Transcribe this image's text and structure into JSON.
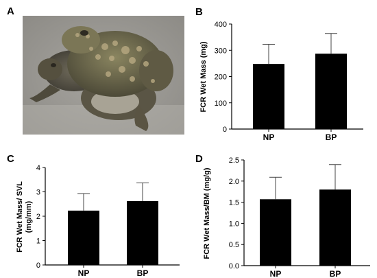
{
  "photo": {
    "letter": "A",
    "subject": "toad-pair-in-amplexus"
  },
  "chart_data": [
    {
      "panel": "B",
      "type": "bar",
      "categories": [
        "NP",
        "BP"
      ],
      "values": [
        248,
        287
      ],
      "errors": [
        75,
        77
      ],
      "ylabel": "FCR  Wet Mass (mg)",
      "ylim": [
        0,
        400
      ],
      "yticks": [
        "0",
        "100",
        "200",
        "300",
        "400"
      ],
      "bar_color": "#000000",
      "grid": false,
      "legend": "none"
    },
    {
      "panel": "C",
      "type": "bar",
      "categories": [
        "NP",
        "BP"
      ],
      "values": [
        2.23,
        2.62
      ],
      "errors": [
        0.7,
        0.75
      ],
      "ylabel": "FCR Wet Mass/ SVL",
      "ylabel2": "(mg/mm)",
      "ylim": [
        0,
        4
      ],
      "yticks": [
        "0",
        "1",
        "2",
        "3",
        "4"
      ],
      "bar_color": "#000000",
      "grid": false,
      "legend": "none"
    },
    {
      "panel": "D",
      "type": "bar",
      "categories": [
        "NP",
        "BP"
      ],
      "values": [
        1.57,
        1.8
      ],
      "errors": [
        0.52,
        0.59
      ],
      "ylabel": "FCR Wet Mass/BM (mg/g)",
      "ylim": [
        0,
        2.5
      ],
      "yticks": [
        "0.0",
        "0.5",
        "1.0",
        "1.5",
        "2.0",
        "2.5"
      ],
      "bar_color": "#000000",
      "grid": false,
      "legend": "none"
    }
  ]
}
